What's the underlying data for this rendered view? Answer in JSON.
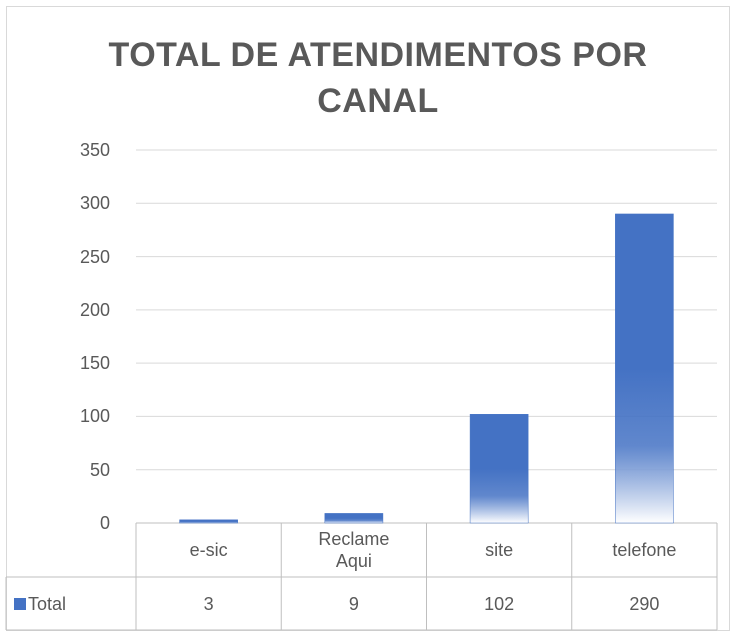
{
  "chart_data": {
    "type": "bar",
    "title": "TOTAL DE ATENDIMENTOS POR CANAL",
    "categories": [
      "e-sic",
      "Reclame Aqui",
      "site",
      "telefone"
    ],
    "series": [
      {
        "name": "Total",
        "color": "#4472c4",
        "values": [
          3,
          9,
          102,
          290
        ]
      }
    ],
    "ylim": [
      0,
      350
    ],
    "yticks": [
      0,
      50,
      100,
      150,
      200,
      250,
      300,
      350
    ],
    "grid": true,
    "data_table": true
  }
}
